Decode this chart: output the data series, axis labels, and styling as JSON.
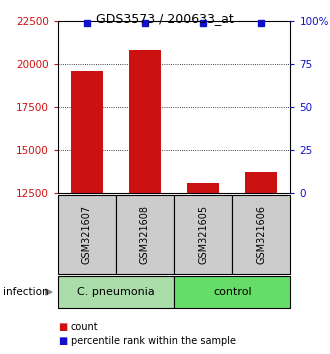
{
  "title": "GDS3573 / 200633_at",
  "samples": [
    "GSM321607",
    "GSM321608",
    "GSM321605",
    "GSM321606"
  ],
  "counts": [
    19600,
    20800,
    13100,
    13700
  ],
  "percentiles": [
    99,
    99,
    99,
    99
  ],
  "ylim": [
    12500,
    22500
  ],
  "yticks_left": [
    12500,
    15000,
    17500,
    20000,
    22500
  ],
  "yticks_right": [
    0,
    25,
    50,
    75,
    100
  ],
  "right_ylabels": [
    "0",
    "25",
    "50",
    "75",
    "100%"
  ],
  "grid_lines": [
    15000,
    17500,
    20000
  ],
  "bar_color": "#cc1111",
  "percentile_color": "#1111cc",
  "bar_width": 0.55,
  "groups": [
    {
      "label": "C. pneumonia",
      "samples_idx": [
        0,
        1
      ],
      "facecolor": "#aaddaa"
    },
    {
      "label": "control",
      "samples_idx": [
        2,
        3
      ],
      "facecolor": "#66dd66"
    }
  ],
  "group_label": "infection",
  "sample_box_color": "#cccccc",
  "legend_items": [
    {
      "color": "#cc1111",
      "label": "count"
    },
    {
      "color": "#1111cc",
      "label": "percentile rank within the sample"
    }
  ],
  "bg_color": "#ffffff"
}
